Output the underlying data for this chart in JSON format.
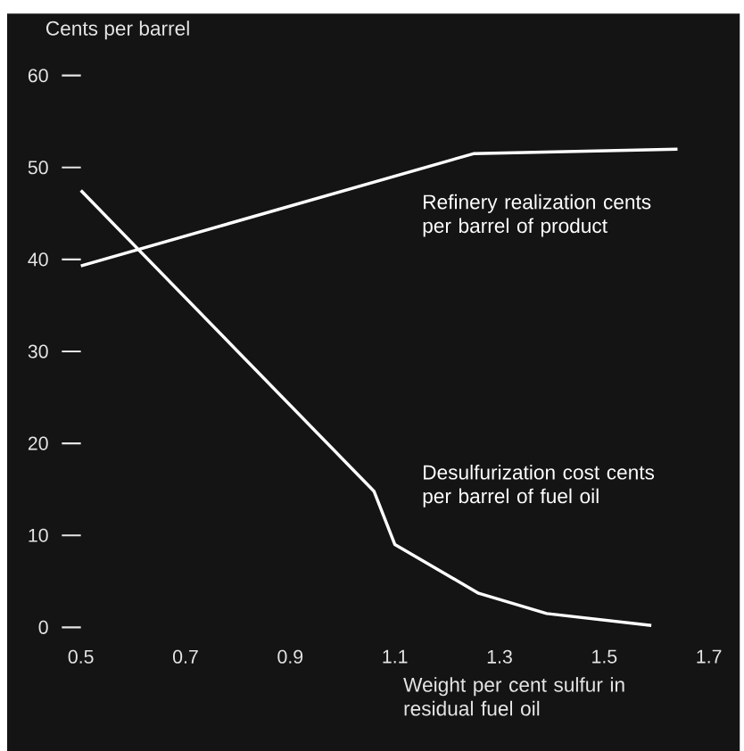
{
  "chart_data": {
    "type": "line",
    "ylabel": "Cents per barrel",
    "xlabel": "Weight per cent sulfur in residual fuel oil",
    "xlim": [
      0.5,
      1.7
    ],
    "xticks": [
      0.5,
      0.7,
      0.9,
      1.1,
      1.3,
      1.5,
      1.7
    ],
    "ylim": [
      0,
      60
    ],
    "yticks": [
      0,
      10,
      20,
      30,
      40,
      50,
      60
    ],
    "series": [
      {
        "name": "Refinery realization cents per barrel of product",
        "color": "#ffffff",
        "x": [
          0.5,
          1.25,
          1.64
        ],
        "values": [
          39.3,
          51.5,
          52
        ]
      },
      {
        "name": "Desulfurization cost cents per barrel of fuel oil",
        "color": "#ffffff",
        "x": [
          0.5,
          1.06,
          1.1,
          1.26,
          1.39,
          1.59
        ],
        "values": [
          47.5,
          14.8,
          9,
          3.7,
          1.5,
          0.2
        ]
      }
    ]
  }
}
